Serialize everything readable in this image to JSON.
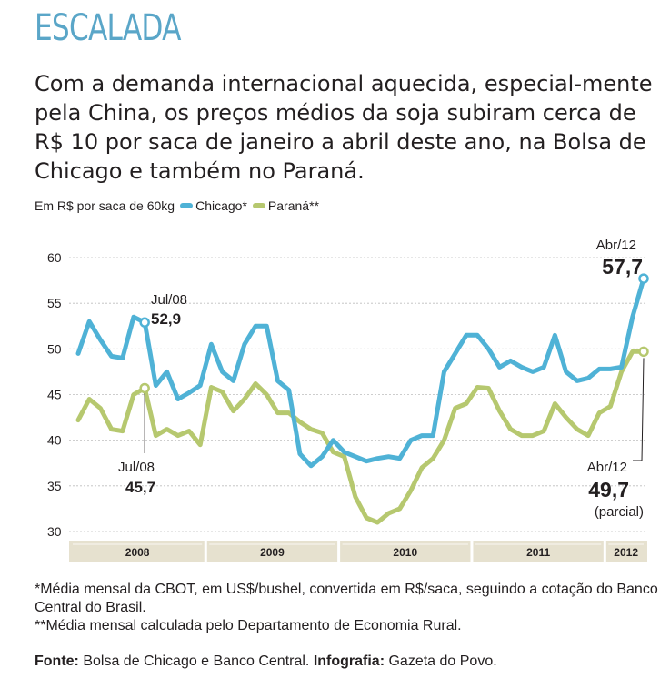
{
  "title": "ESCALADA",
  "intro": "Com a demanda internacional aquecida, especial-mente pela China, os preços médios da soja subiram cerca de R$ 10 por saca de janeiro a abril deste ano, na Bolsa de Chicago e também no Paraná.",
  "legend": {
    "unit": "Em R$ por saca de 60kg",
    "chicago": "Chicago*",
    "parana": "Paraná**"
  },
  "colors": {
    "chicago": "#4fb2d6",
    "parana": "#b6c86f",
    "band": "#e6e1cf"
  },
  "chart_data": {
    "type": "line",
    "ylim": [
      30,
      60
    ],
    "yticks": [
      "60",
      "55",
      "50",
      "45",
      "40",
      "35",
      "30"
    ],
    "year_labels": [
      "2008",
      "2009",
      "2010",
      "2011",
      "2012"
    ],
    "months": 52,
    "series": [
      {
        "name": "Chicago*",
        "values": [
          49.5,
          53,
          51,
          49.2,
          49,
          53.5,
          52.9,
          46,
          47.5,
          44.5,
          45.2,
          46,
          50.5,
          47.5,
          46.5,
          50.5,
          52.5,
          52.5,
          46.5,
          45.5,
          38.5,
          37.2,
          38.2,
          40,
          38.7,
          38.2,
          37.7,
          38,
          38.2,
          38,
          40,
          40.5,
          40.5,
          47.5,
          49.5,
          51.5,
          51.5,
          50,
          48,
          48.7,
          48,
          47.5,
          48,
          51.5,
          47.5,
          46.5,
          46.8,
          47.8,
          47.8,
          48,
          53.5,
          57.7
        ]
      },
      {
        "name": "Paraná**",
        "values": [
          42.2,
          44.5,
          43.5,
          41.2,
          41,
          45,
          45.7,
          40.5,
          41.2,
          40.5,
          41,
          39.5,
          45.8,
          45.3,
          43.2,
          44.5,
          46.2,
          45,
          43,
          43,
          42,
          41.2,
          40.8,
          38.7,
          38.2,
          33.8,
          31.5,
          31,
          32,
          32.5,
          34.5,
          37,
          38,
          40,
          43.5,
          44,
          45.8,
          45.7,
          43.2,
          41.2,
          40.5,
          40.5,
          41,
          44,
          42.5,
          41.2,
          40.5,
          43,
          43.7,
          47.5,
          49.7,
          49.7
        ]
      }
    ],
    "annotations": [
      {
        "label": "Jul/08",
        "value": "52,9"
      },
      {
        "label": "Jul/08",
        "value": "45,7"
      },
      {
        "label": "Abr/12",
        "value": "57,7"
      },
      {
        "label": "Abr/12",
        "value": "49,7",
        "note": "(parcial)"
      }
    ]
  },
  "footnotes": [
    "*Média mensal da CBOT, em US$/bushel, convertida em R$/saca, seguindo a cotação do Banco Central do Brasil.",
    "**Média mensal calculada pelo Departamento de Economia Rural."
  ],
  "source": {
    "label": "Fonte:",
    "text": " Bolsa de Chicago e Banco Central. ",
    "credit_label": "Infografia:",
    "credit_text": " Gazeta do Povo."
  }
}
